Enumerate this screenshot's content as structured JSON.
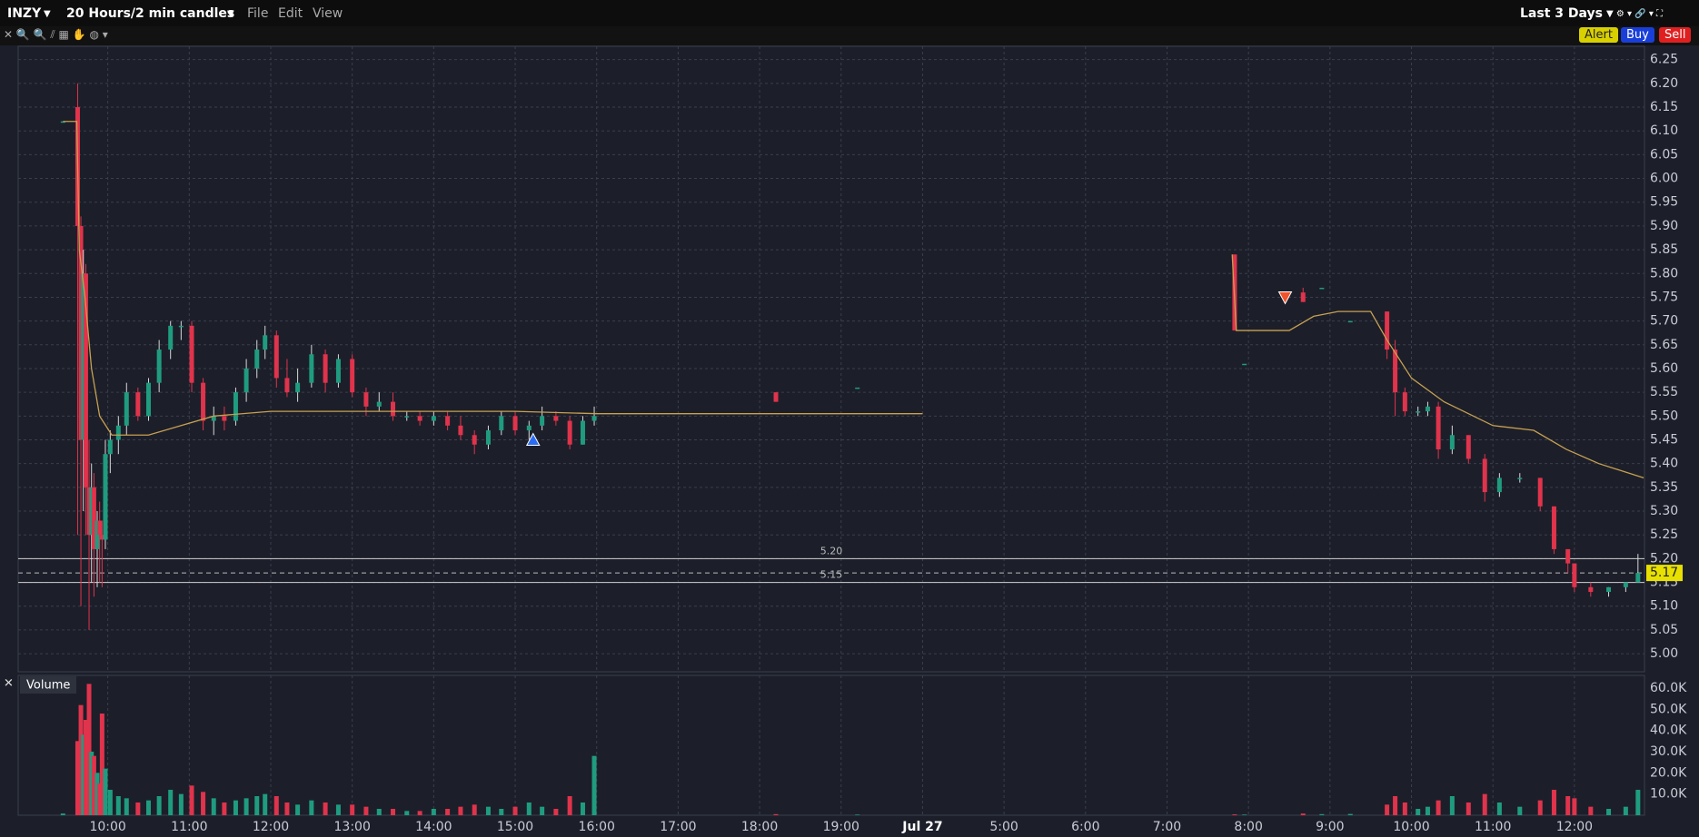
{
  "toolbar": {
    "symbol": "INZY",
    "period": "20 Hours/2 min candles",
    "menu": [
      "File",
      "Edit",
      "View"
    ],
    "range": "Last 3 Days",
    "buttons": [
      "Alert",
      "Buy",
      "Sell"
    ]
  },
  "chart_data": {
    "type": "candlestick",
    "up_color": "#1f9c7f",
    "down_color": "#e0334c",
    "candles": {
      "x": [
        9.45,
        9.63,
        9.67,
        9.7,
        9.73,
        9.77,
        9.8,
        9.83,
        9.87,
        9.9,
        9.93,
        9.97,
        10.03,
        10.13,
        10.23,
        10.37,
        10.5,
        10.63,
        10.77,
        10.9,
        11.03,
        11.17,
        11.3,
        11.43,
        11.57,
        11.7,
        11.83,
        11.93,
        12.07,
        12.2,
        12.33,
        12.5,
        12.67,
        12.83,
        13.0,
        13.17,
        13.33,
        13.5,
        13.67,
        13.83,
        14.0,
        14.17,
        14.33,
        14.5,
        14.67,
        14.83,
        15.0,
        15.17,
        15.33,
        15.5,
        15.67,
        15.83,
        15.97,
        18.2,
        19.2,
        23.83,
        23.95,
        24.67,
        24.9,
        25.25,
        25.7,
        25.8,
        25.92,
        26.08,
        26.2,
        26.33,
        26.5,
        26.7,
        26.9,
        27.08,
        27.33,
        27.58,
        27.75,
        27.92,
        28.0,
        28.2,
        28.42,
        28.63,
        28.78
      ],
      "open": [
        6.12,
        6.15,
        5.9,
        5.45,
        5.8,
        5.35,
        5.25,
        5.35,
        5.22,
        5.28,
        5.25,
        5.24,
        5.42,
        5.45,
        5.48,
        5.55,
        5.5,
        5.57,
        5.64,
        5.69,
        5.69,
        5.57,
        5.49,
        5.5,
        5.49,
        5.55,
        5.6,
        5.64,
        5.67,
        5.58,
        5.55,
        5.57,
        5.63,
        5.57,
        5.62,
        5.55,
        5.52,
        5.53,
        5.5,
        5.5,
        5.49,
        5.5,
        5.48,
        5.46,
        5.44,
        5.47,
        5.5,
        5.47,
        5.48,
        5.5,
        5.49,
        5.44,
        5.49,
        5.55,
        5.56,
        5.84,
        5.61,
        5.76,
        5.77,
        5.7,
        5.72,
        5.64,
        5.55,
        5.51,
        5.51,
        5.52,
        5.43,
        5.46,
        5.41,
        5.34,
        5.37,
        5.37,
        5.31,
        5.22,
        5.19,
        5.14,
        5.13,
        5.14,
        5.15
      ],
      "high": [
        6.12,
        6.2,
        5.92,
        5.85,
        5.82,
        5.45,
        5.4,
        5.38,
        5.3,
        5.32,
        5.28,
        5.45,
        5.47,
        5.5,
        5.57,
        5.56,
        5.58,
        5.66,
        5.7,
        5.7,
        5.7,
        5.58,
        5.52,
        5.52,
        5.56,
        5.62,
        5.66,
        5.69,
        5.68,
        5.62,
        5.6,
        5.65,
        5.64,
        5.63,
        5.63,
        5.56,
        5.55,
        5.55,
        5.51,
        5.51,
        5.51,
        5.51,
        5.5,
        5.47,
        5.48,
        5.51,
        5.51,
        5.49,
        5.52,
        5.51,
        5.5,
        5.5,
        5.52,
        5.55,
        5.56,
        5.84,
        5.61,
        5.77,
        5.77,
        5.7,
        5.72,
        5.66,
        5.56,
        5.52,
        5.53,
        5.53,
        5.48,
        5.46,
        5.42,
        5.38,
        5.38,
        5.37,
        5.31,
        5.22,
        5.19,
        5.15,
        5.14,
        5.15,
        5.21
      ],
      "low": [
        6.12,
        5.25,
        5.1,
        5.3,
        5.25,
        5.05,
        5.15,
        5.12,
        5.14,
        5.15,
        5.14,
        5.22,
        5.38,
        5.42,
        5.46,
        5.49,
        5.49,
        5.55,
        5.62,
        5.66,
        5.55,
        5.47,
        5.46,
        5.47,
        5.48,
        5.53,
        5.58,
        5.62,
        5.56,
        5.54,
        5.53,
        5.56,
        5.55,
        5.56,
        5.54,
        5.5,
        5.51,
        5.49,
        5.49,
        5.48,
        5.48,
        5.47,
        5.45,
        5.42,
        5.43,
        5.46,
        5.46,
        5.45,
        5.47,
        5.48,
        5.43,
        5.44,
        5.48,
        5.53,
        5.56,
        5.68,
        5.61,
        5.74,
        5.77,
        5.7,
        5.62,
        5.5,
        5.5,
        5.5,
        5.5,
        5.41,
        5.42,
        5.4,
        5.32,
        5.33,
        5.36,
        5.3,
        5.21,
        5.17,
        5.13,
        5.12,
        5.12,
        5.13,
        5.15
      ],
      "close": [
        6.12,
        5.9,
        5.45,
        5.8,
        5.35,
        5.25,
        5.35,
        5.22,
        5.28,
        5.25,
        5.24,
        5.42,
        5.45,
        5.48,
        5.55,
        5.5,
        5.57,
        5.64,
        5.69,
        5.69,
        5.57,
        5.49,
        5.5,
        5.49,
        5.55,
        5.6,
        5.64,
        5.67,
        5.58,
        5.55,
        5.57,
        5.63,
        5.57,
        5.62,
        5.55,
        5.52,
        5.53,
        5.5,
        5.5,
        5.49,
        5.5,
        5.48,
        5.46,
        5.44,
        5.47,
        5.5,
        5.47,
        5.48,
        5.5,
        5.49,
        5.44,
        5.49,
        5.5,
        5.53,
        5.56,
        5.68,
        5.61,
        5.74,
        5.77,
        5.7,
        5.64,
        5.55,
        5.51,
        5.51,
        5.52,
        5.43,
        5.46,
        5.41,
        5.34,
        5.37,
        5.37,
        5.31,
        5.22,
        5.19,
        5.14,
        5.13,
        5.14,
        5.15,
        5.17
      ]
    },
    "xlim": [
      8.9,
      28.86
    ],
    "xticks": [
      {
        "value": 10,
        "label": "10:00"
      },
      {
        "value": 11,
        "label": "11:00"
      },
      {
        "value": 12,
        "label": "12:00"
      },
      {
        "value": 13,
        "label": "13:00"
      },
      {
        "value": 14,
        "label": "14:00"
      },
      {
        "value": 15,
        "label": "15:00"
      },
      {
        "value": 16,
        "label": "16:00"
      },
      {
        "value": 17,
        "label": "17:00"
      },
      {
        "value": 18,
        "label": "18:00"
      },
      {
        "value": 19,
        "label": "19:00"
      },
      {
        "value": 20,
        "label": "Jul 27"
      },
      {
        "value": 21,
        "label": "5:00"
      },
      {
        "value": 22,
        "label": "6:00"
      },
      {
        "value": 23,
        "label": "7:00"
      },
      {
        "value": 24,
        "label": "8:00"
      },
      {
        "value": 25,
        "label": "9:00"
      },
      {
        "value": 26,
        "label": "10:00"
      },
      {
        "value": 27,
        "label": "11:00"
      },
      {
        "value": 28,
        "label": "12:00"
      }
    ],
    "ylim": [
      4.962,
      6.278
    ],
    "yticks": [
      {
        "value": 5,
        "label": "5.00"
      },
      5.05,
      {
        "value": 5.1,
        "label": "5.10"
      },
      5.15,
      {
        "value": 5.2,
        "label": "5.20"
      },
      5.25,
      {
        "value": 5.3,
        "label": "5.30"
      },
      5.35,
      {
        "value": 5.4,
        "label": "5.40"
      },
      5.45,
      {
        "value": 5.5,
        "label": "5.50"
      },
      5.55,
      {
        "value": 5.6,
        "label": "5.60"
      },
      5.65,
      {
        "value": 5.7,
        "label": "5.70"
      },
      5.75,
      {
        "value": 5.8,
        "label": "5.80"
      },
      5.85,
      {
        "value": 5.9,
        "label": "5.90"
      },
      5.95,
      {
        "value": 6,
        "label": "6.00"
      },
      6.05,
      {
        "value": 6.1,
        "label": "6.10"
      },
      6.15,
      {
        "value": 6.2,
        "label": "6.20"
      },
      6.25
    ],
    "grid": true,
    "vwap": {
      "color": "#c8a050",
      "x": [
        9.45,
        9.62,
        9.65,
        9.72,
        9.8,
        9.9,
        10.05,
        10.5,
        10.9,
        11.3,
        12,
        13,
        14,
        15,
        16,
        20,
        22,
        23.8,
        23.85,
        24.5,
        24.8,
        25.1,
        25.5,
        25.7,
        26,
        26.4,
        27,
        27.5,
        27.9,
        28.3,
        28.85
      ],
      "values": [
        6.12,
        6.12,
        5.85,
        5.75,
        5.6,
        5.5,
        5.46,
        5.46,
        5.48,
        5.5,
        5.51,
        5.51,
        5.51,
        5.51,
        5.505,
        5.505,
        null,
        5.84,
        5.68,
        5.68,
        5.71,
        5.72,
        5.72,
        5.66,
        5.58,
        5.53,
        5.48,
        5.47,
        5.43,
        5.4,
        5.37
      ]
    },
    "levels": [
      {
        "value": 5.2,
        "label": "5.20"
      },
      5.15
    ],
    "last_price": 5.17,
    "markers": [
      {
        "x": 15.22,
        "value": 5.45,
        "direction": "up",
        "color": "#2a6df4"
      },
      {
        "x": 24.45,
        "value": 5.75,
        "direction": "down",
        "color": "#f0542c"
      }
    ],
    "volume": {
      "title": "Volume",
      "ylim": [
        0,
        66000
      ],
      "yticks": [
        {
          "value": 10000,
          "label": "10.0K"
        },
        {
          "value": 20000,
          "label": "20.0K"
        },
        {
          "value": 30000,
          "label": "30.0K"
        },
        {
          "value": 40000,
          "label": "40.0K"
        },
        {
          "value": 50000,
          "label": "50.0K"
        },
        {
          "value": 60000,
          "label": "60.0K"
        }
      ],
      "values": [
        800,
        35000,
        52000,
        38000,
        45000,
        62000,
        30000,
        28000,
        20000,
        15000,
        48000,
        22000,
        12000,
        9000,
        8000,
        6000,
        7000,
        9000,
        12000,
        10000,
        14000,
        11000,
        8000,
        6000,
        7000,
        8000,
        9000,
        10000,
        9000,
        6000,
        5000,
        7000,
        6000,
        5000,
        5000,
        4000,
        3000,
        3000,
        2000,
        2000,
        3000,
        3000,
        4000,
        5000,
        4000,
        3000,
        4000,
        6000,
        4000,
        3000,
        9000,
        6000,
        28000,
        500,
        300,
        400,
        300,
        800,
        500,
        600,
        5000,
        9000,
        6000,
        3000,
        4000,
        7000,
        9000,
        6000,
        10000,
        6000,
        4000,
        7000,
        12000,
        9000,
        8000,
        4000,
        3000,
        4000,
        12000
      ]
    }
  }
}
